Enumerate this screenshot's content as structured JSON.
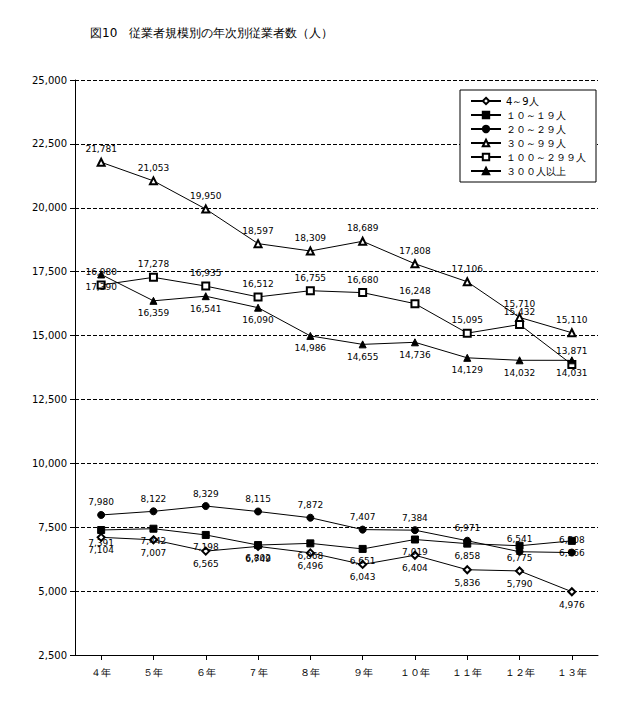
{
  "chart_data": {
    "type": "line",
    "title": "図10　従業者規模別の年次別従業者数（人）",
    "categories": [
      "４年",
      "５年",
      "６年",
      "７年",
      "８年",
      "９年",
      "１０年",
      "１１年",
      "１２年",
      "１３年"
    ],
    "series": [
      {
        "name": "4～9人",
        "color": "#000000",
        "marker": "open_diamond",
        "line_style": "solid",
        "values": [
          7104,
          7007,
          6565,
          6749,
          6496,
          6043,
          6404,
          5836,
          5790,
          4976
        ],
        "value_labels": [
          "7,104",
          "7,007",
          "6,565",
          "6,749",
          "6,496",
          "6,043",
          "6,404",
          "5,836",
          "5,790",
          "4,976"
        ]
      },
      {
        "name": "１０～１９人",
        "color": "#000000",
        "marker": "square",
        "line_style": "solid",
        "values": [
          7391,
          7442,
          7198,
          6802,
          6868,
          6651,
          7019,
          6858,
          6775,
          6966
        ],
        "value_labels": [
          "7,391",
          "7,442",
          "7,198",
          "6,802",
          "6,868",
          "6,651",
          "7,019",
          "6,858",
          "6,775",
          "6,966"
        ]
      },
      {
        "name": "２０～２９人",
        "color": "#000000",
        "marker": "circle",
        "line_style": "solid",
        "values": [
          7980,
          8122,
          8329,
          8115,
          7872,
          7407,
          7384,
          6971,
          6541,
          6508
        ],
        "value_labels": [
          "7,980",
          "8,122",
          "8,329",
          "8,115",
          "7,872",
          "7,407",
          "7,384",
          "6,971",
          "6,541",
          "6,508"
        ]
      },
      {
        "name": "３０～９９人",
        "color": "#000000",
        "marker": "open_triangle",
        "line_style": "solid",
        "values": [
          21781,
          21053,
          19950,
          18597,
          18309,
          18689,
          17808,
          17106,
          15710,
          15110
        ],
        "value_labels": [
          "21,781",
          "21,053",
          "19,950",
          "18,597",
          "18,309",
          "18,689",
          "17,808",
          "17,106",
          "15,710",
          "15,110"
        ]
      },
      {
        "name": "１００～２９９人",
        "color": "#000000",
        "marker": "open_square",
        "line_style": "solid",
        "values": [
          16980,
          17278,
          16935,
          16512,
          16755,
          16680,
          16248,
          15095,
          15432,
          13871
        ],
        "value_labels": [
          "16,980",
          "17,278",
          "16,935",
          "16,512",
          "16,755",
          "16,680",
          "16,248",
          "15,095",
          "15,432",
          "13,871"
        ]
      },
      {
        "name": "３００人以上",
        "color": "#000000",
        "marker": "triangle",
        "line_style": "solid",
        "values": [
          17390,
          16359,
          16541,
          16090,
          14986,
          14655,
          14736,
          14129,
          14032,
          14031
        ],
        "value_labels": [
          "17,390",
          "16,359",
          "16,541",
          "16,090",
          "14,986",
          "14,655",
          "14,736",
          "14,129",
          "14,032",
          "14,031"
        ]
      }
    ],
    "ylim": [
      2500,
      25000
    ],
    "yticks": [
      {
        "value": 2500,
        "label": "2,500"
      },
      {
        "value": 5000,
        "label": "5,000"
      },
      {
        "value": 7500,
        "label": "7,500"
      },
      {
        "value": 10000,
        "label": "10,000"
      },
      {
        "value": 12500,
        "label": "12,500"
      },
      {
        "value": 15000,
        "label": "15,000"
      },
      {
        "value": 17500,
        "label": "17,500"
      },
      {
        "value": 20000,
        "label": "20,000"
      },
      {
        "value": 22500,
        "label": "22,500"
      },
      {
        "value": 25000,
        "label": "25,000"
      }
    ],
    "grid": true,
    "legend": "upper right",
    "data_labels": true
  }
}
